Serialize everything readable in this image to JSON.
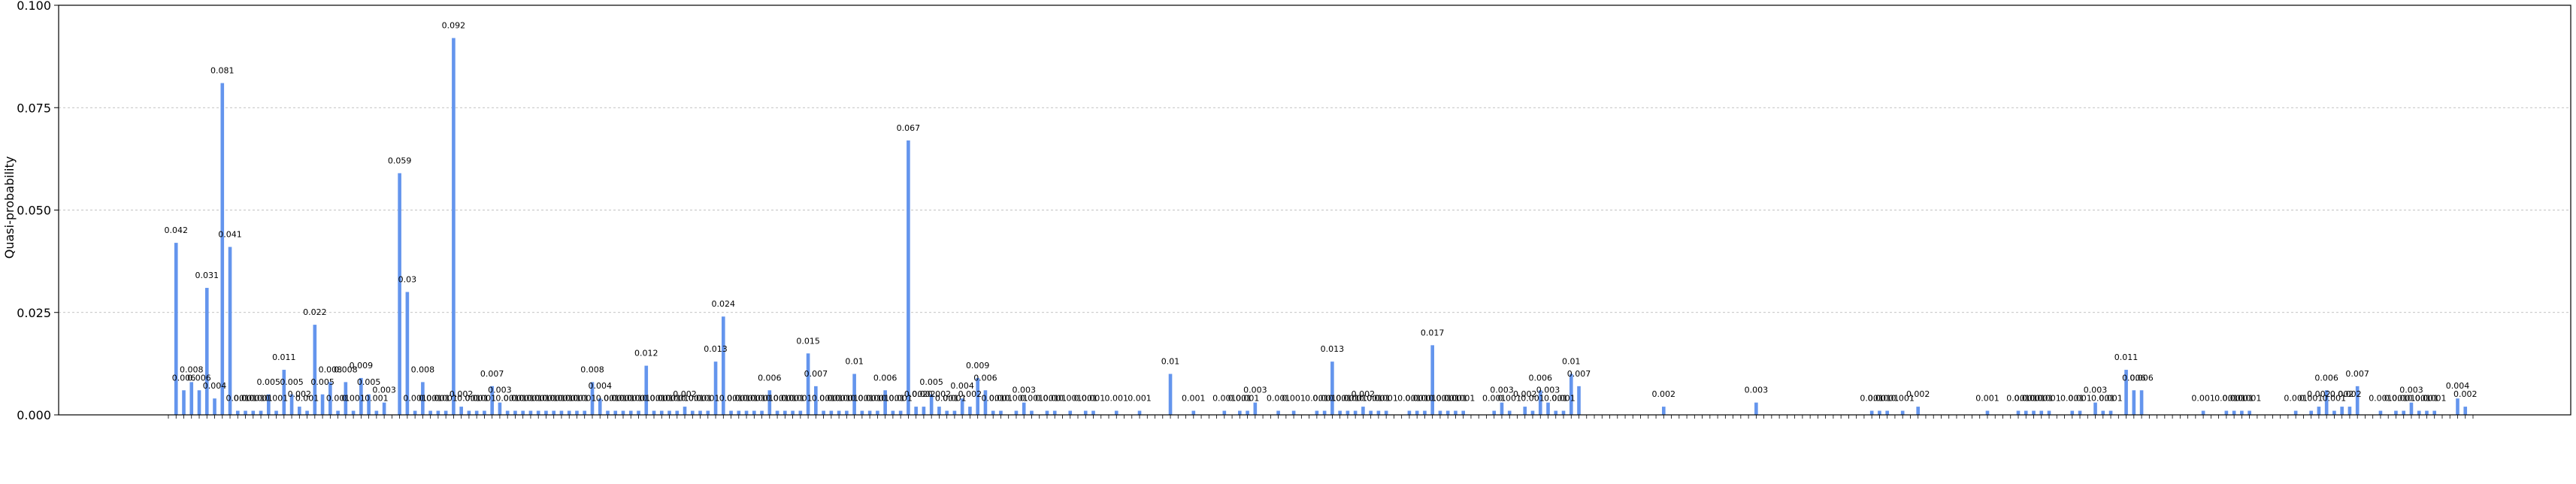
{
  "chart_data": {
    "type": "bar",
    "ylabel": "Quasi-probability",
    "ylim": [
      0,
      0.1
    ],
    "yticks": [
      "0.000",
      "0.025",
      "0.050",
      "0.075",
      "0.100"
    ],
    "ytick_values": [
      0,
      0.025,
      0.05,
      0.075,
      0.1
    ],
    "grid": "horizontal dashed",
    "bar_color": "#6495ED",
    "category_count": 300,
    "bars": [
      {
        "index": 1,
        "value": 0.042,
        "label": "0.042"
      },
      {
        "index": 2,
        "value": 0.006,
        "label": "0.006"
      },
      {
        "index": 3,
        "value": 0.008,
        "label": "0.008"
      },
      {
        "index": 4,
        "value": 0.006,
        "label": "0.006"
      },
      {
        "index": 5,
        "value": 0.031,
        "label": "0.031"
      },
      {
        "index": 6,
        "value": 0.004,
        "label": "0.004"
      },
      {
        "index": 7,
        "value": 0.081,
        "label": "0.081"
      },
      {
        "index": 8,
        "value": 0.041,
        "label": "0.041"
      },
      {
        "index": 9,
        "value": 0.001,
        "label": "0.001"
      },
      {
        "index": 10,
        "value": 0.001,
        "label": "0.001"
      },
      {
        "index": 11,
        "value": 0.001,
        "label": "0.001"
      },
      {
        "index": 12,
        "value": 0.001,
        "label": "0.001"
      },
      {
        "index": 13,
        "value": 0.005,
        "label": "0.005"
      },
      {
        "index": 14,
        "value": 0.001,
        "label": "0.001"
      },
      {
        "index": 15,
        "value": 0.011,
        "label": "0.011"
      },
      {
        "index": 16,
        "value": 0.005,
        "label": "0.005"
      },
      {
        "index": 17,
        "value": 0.002,
        "label": "0.002"
      },
      {
        "index": 18,
        "value": 0.001,
        "label": "0.001"
      },
      {
        "index": 19,
        "value": 0.022,
        "label": "0.022"
      },
      {
        "index": 20,
        "value": 0.005,
        "label": "0.005"
      },
      {
        "index": 21,
        "value": 0.008,
        "label": "0.008"
      },
      {
        "index": 22,
        "value": 0.001,
        "label": "0.001"
      },
      {
        "index": 23,
        "value": 0.008,
        "label": "0.008"
      },
      {
        "index": 24,
        "value": 0.001,
        "label": "0.001"
      },
      {
        "index": 25,
        "value": 0.009,
        "label": "0.009"
      },
      {
        "index": 26,
        "value": 0.005,
        "label": "0.005"
      },
      {
        "index": 27,
        "value": 0.001,
        "label": "0.001"
      },
      {
        "index": 28,
        "value": 0.003,
        "label": "0.003"
      },
      {
        "index": 30,
        "value": 0.059,
        "label": "0.059"
      },
      {
        "index": 31,
        "value": 0.03,
        "label": "0.03"
      },
      {
        "index": 32,
        "value": 0.001,
        "label": "0.001"
      },
      {
        "index": 33,
        "value": 0.008,
        "label": "0.008"
      },
      {
        "index": 34,
        "value": 0.001,
        "label": "0.001"
      },
      {
        "index": 35,
        "value": 0.001,
        "label": "0.001"
      },
      {
        "index": 36,
        "value": 0.001,
        "label": "0.001"
      },
      {
        "index": 37,
        "value": 0.092,
        "label": "0.092"
      },
      {
        "index": 38,
        "value": 0.002,
        "label": "0.002"
      },
      {
        "index": 39,
        "value": 0.001,
        "label": "0.001"
      },
      {
        "index": 40,
        "value": 0.001,
        "label": "0.001"
      },
      {
        "index": 41,
        "value": 0.001,
        "label": "0.001"
      },
      {
        "index": 42,
        "value": 0.007,
        "label": "0.007"
      },
      {
        "index": 43,
        "value": 0.003,
        "label": "0.003"
      },
      {
        "index": 44,
        "value": 0.001,
        "label": "0.001"
      },
      {
        "index": 45,
        "value": 0.001,
        "label": "0.001"
      },
      {
        "index": 46,
        "value": 0.001,
        "label": "0.001"
      },
      {
        "index": 47,
        "value": 0.001,
        "label": "0.001"
      },
      {
        "index": 48,
        "value": 0.001,
        "label": "0.001"
      },
      {
        "index": 49,
        "value": 0.001,
        "label": "0.001"
      },
      {
        "index": 50,
        "value": 0.001,
        "label": "0.001"
      },
      {
        "index": 51,
        "value": 0.001,
        "label": "0.001"
      },
      {
        "index": 52,
        "value": 0.001,
        "label": "0.001"
      },
      {
        "index": 53,
        "value": 0.001,
        "label": "0.001"
      },
      {
        "index": 54,
        "value": 0.001,
        "label": "0.001"
      },
      {
        "index": 55,
        "value": 0.008,
        "label": "0.008"
      },
      {
        "index": 56,
        "value": 0.004,
        "label": "0.004"
      },
      {
        "index": 57,
        "value": 0.001,
        "label": "0.001"
      },
      {
        "index": 58,
        "value": 0.001,
        "label": "0.001"
      },
      {
        "index": 59,
        "value": 0.001,
        "label": "0.001"
      },
      {
        "index": 60,
        "value": 0.001,
        "label": "0.001"
      },
      {
        "index": 61,
        "value": 0.001,
        "label": "0.001"
      },
      {
        "index": 62,
        "value": 0.012,
        "label": "0.012"
      },
      {
        "index": 63,
        "value": 0.001,
        "label": "0.001"
      },
      {
        "index": 64,
        "value": 0.001,
        "label": "0.001"
      },
      {
        "index": 65,
        "value": 0.001,
        "label": "0.001"
      },
      {
        "index": 66,
        "value": 0.001,
        "label": "0.001"
      },
      {
        "index": 67,
        "value": 0.002,
        "label": "0.002"
      },
      {
        "index": 68,
        "value": 0.001,
        "label": "0.001"
      },
      {
        "index": 69,
        "value": 0.001,
        "label": "0.001"
      },
      {
        "index": 70,
        "value": 0.001,
        "label": "0.001"
      },
      {
        "index": 71,
        "value": 0.013,
        "label": "0.013"
      },
      {
        "index": 72,
        "value": 0.024,
        "label": "0.024"
      },
      {
        "index": 73,
        "value": 0.001,
        "label": "0.001"
      },
      {
        "index": 74,
        "value": 0.001,
        "label": "0.001"
      },
      {
        "index": 75,
        "value": 0.001,
        "label": "0.001"
      },
      {
        "index": 76,
        "value": 0.001,
        "label": "0.001"
      },
      {
        "index": 77,
        "value": 0.001,
        "label": "0.001"
      },
      {
        "index": 78,
        "value": 0.006,
        "label": "0.006"
      },
      {
        "index": 79,
        "value": 0.001,
        "label": "0.001"
      },
      {
        "index": 80,
        "value": 0.001,
        "label": "0.001"
      },
      {
        "index": 81,
        "value": 0.001,
        "label": "0.001"
      },
      {
        "index": 82,
        "value": 0.001,
        "label": "0.001"
      },
      {
        "index": 83,
        "value": 0.015,
        "label": "0.015"
      },
      {
        "index": 84,
        "value": 0.007,
        "label": "0.007"
      },
      {
        "index": 85,
        "value": 0.001,
        "label": "0.001"
      },
      {
        "index": 86,
        "value": 0.001,
        "label": "0.001"
      },
      {
        "index": 87,
        "value": 0.001,
        "label": "0.001"
      },
      {
        "index": 88,
        "value": 0.001,
        "label": "0.001"
      },
      {
        "index": 89,
        "value": 0.01,
        "label": "0.01"
      },
      {
        "index": 90,
        "value": 0.001,
        "label": "0.001"
      },
      {
        "index": 91,
        "value": 0.001,
        "label": "0.001"
      },
      {
        "index": 92,
        "value": 0.001,
        "label": "0.001"
      },
      {
        "index": 93,
        "value": 0.006,
        "label": "0.006"
      },
      {
        "index": 94,
        "value": 0.001,
        "label": "0.001"
      },
      {
        "index": 95,
        "value": 0.001,
        "label": "0.001"
      },
      {
        "index": 96,
        "value": 0.067,
        "label": "0.067"
      },
      {
        "index": 97,
        "value": 0.002,
        "label": "0.002"
      },
      {
        "index": 98,
        "value": 0.002,
        "label": "0.002"
      },
      {
        "index": 99,
        "value": 0.005,
        "label": "0.005"
      },
      {
        "index": 100,
        "value": 0.002,
        "label": "0.002"
      },
      {
        "index": 101,
        "value": 0.001,
        "label": "0.001"
      },
      {
        "index": 102,
        "value": 0.001,
        "label": "0.001"
      },
      {
        "index": 103,
        "value": 0.004,
        "label": "0.004"
      },
      {
        "index": 104,
        "value": 0.002,
        "label": "0.002"
      },
      {
        "index": 105,
        "value": 0.009,
        "label": "0.009"
      },
      {
        "index": 106,
        "value": 0.006,
        "label": "0.006"
      },
      {
        "index": 107,
        "value": 0.001,
        "label": "0.001"
      },
      {
        "index": 108,
        "value": 0.001,
        "label": "0.001"
      },
      {
        "index": 110,
        "value": 0.001,
        "label": "0.001"
      },
      {
        "index": 111,
        "value": 0.003,
        "label": "0.003"
      },
      {
        "index": 112,
        "value": 0.001,
        "label": "0.001"
      },
      {
        "index": 114,
        "value": 0.001,
        "label": "0.001"
      },
      {
        "index": 115,
        "value": 0.001,
        "label": "0.001"
      },
      {
        "index": 117,
        "value": 0.001,
        "label": "0.001"
      },
      {
        "index": 119,
        "value": 0.001,
        "label": "0.001"
      },
      {
        "index": 120,
        "value": 0.001,
        "label": "0.001"
      },
      {
        "index": 123,
        "value": 0.001,
        "label": "0.001"
      },
      {
        "index": 126,
        "value": 0.001,
        "label": "0.001"
      },
      {
        "index": 130,
        "value": 0.01,
        "label": "0.01"
      },
      {
        "index": 133,
        "value": 0.001,
        "label": "0.001"
      },
      {
        "index": 137,
        "value": 0.001,
        "label": "0.001"
      },
      {
        "index": 139,
        "value": 0.001,
        "label": "0.001"
      },
      {
        "index": 140,
        "value": 0.001,
        "label": "0.001"
      },
      {
        "index": 141,
        "value": 0.003,
        "label": "0.003"
      },
      {
        "index": 144,
        "value": 0.001,
        "label": "0.001"
      },
      {
        "index": 146,
        "value": 0.001,
        "label": "0.001"
      },
      {
        "index": 149,
        "value": 0.001,
        "label": "0.001"
      },
      {
        "index": 150,
        "value": 0.001,
        "label": "0.001"
      },
      {
        "index": 151,
        "value": 0.013,
        "label": "0.013"
      },
      {
        "index": 152,
        "value": 0.001,
        "label": "0.001"
      },
      {
        "index": 153,
        "value": 0.001,
        "label": "0.001"
      },
      {
        "index": 154,
        "value": 0.001,
        "label": "0.001"
      },
      {
        "index": 155,
        "value": 0.002,
        "label": "0.002"
      },
      {
        "index": 156,
        "value": 0.001,
        "label": "0.001"
      },
      {
        "index": 157,
        "value": 0.001,
        "label": "0.001"
      },
      {
        "index": 158,
        "value": 0.001,
        "label": "0.001"
      },
      {
        "index": 161,
        "value": 0.001,
        "label": "0.001"
      },
      {
        "index": 162,
        "value": 0.001,
        "label": "0.001"
      },
      {
        "index": 163,
        "value": 0.001,
        "label": "0.001"
      },
      {
        "index": 164,
        "value": 0.017,
        "label": "0.017"
      },
      {
        "index": 165,
        "value": 0.001,
        "label": "0.001"
      },
      {
        "index": 166,
        "value": 0.001,
        "label": "0.001"
      },
      {
        "index": 167,
        "value": 0.001,
        "label": "0.001"
      },
      {
        "index": 168,
        "value": 0.001,
        "label": "0.001"
      },
      {
        "index": 172,
        "value": 0.001,
        "label": "0.001"
      },
      {
        "index": 173,
        "value": 0.003,
        "label": "0.003"
      },
      {
        "index": 174,
        "value": 0.001,
        "label": "0.001"
      },
      {
        "index": 176,
        "value": 0.002,
        "label": "0.002"
      },
      {
        "index": 177,
        "value": 0.001,
        "label": "0.001"
      },
      {
        "index": 178,
        "value": 0.006,
        "label": "0.006"
      },
      {
        "index": 179,
        "value": 0.003,
        "label": "0.003"
      },
      {
        "index": 180,
        "value": 0.001,
        "label": "0.001"
      },
      {
        "index": 181,
        "value": 0.001,
        "label": "0.001"
      },
      {
        "index": 182,
        "value": 0.01,
        "label": "0.01"
      },
      {
        "index": 183,
        "value": 0.007,
        "label": "0.007"
      },
      {
        "index": 194,
        "value": 0.002,
        "label": "0.002"
      },
      {
        "index": 206,
        "value": 0.003,
        "label": "0.003"
      },
      {
        "index": 221,
        "value": 0.001,
        "label": "0.001"
      },
      {
        "index": 222,
        "value": 0.001,
        "label": "0.001"
      },
      {
        "index": 223,
        "value": 0.001,
        "label": "0.001"
      },
      {
        "index": 225,
        "value": 0.001,
        "label": "0.001"
      },
      {
        "index": 227,
        "value": 0.002,
        "label": "0.002"
      },
      {
        "index": 236,
        "value": 0.001,
        "label": "0.001"
      },
      {
        "index": 240,
        "value": 0.001,
        "label": "0.001"
      },
      {
        "index": 241,
        "value": 0.001,
        "label": "0.001"
      },
      {
        "index": 242,
        "value": 0.001,
        "label": "0.001"
      },
      {
        "index": 243,
        "value": 0.001,
        "label": "0.001"
      },
      {
        "index": 244,
        "value": 0.001,
        "label": "0.001"
      },
      {
        "index": 247,
        "value": 0.001,
        "label": "0.001"
      },
      {
        "index": 248,
        "value": 0.001,
        "label": "0.001"
      },
      {
        "index": 250,
        "value": 0.003,
        "label": "0.003"
      },
      {
        "index": 251,
        "value": 0.001,
        "label": "0.001"
      },
      {
        "index": 252,
        "value": 0.001,
        "label": "0.001"
      },
      {
        "index": 254,
        "value": 0.011,
        "label": "0.011"
      },
      {
        "index": 255,
        "value": 0.006,
        "label": "0.006"
      },
      {
        "index": 256,
        "value": 0.006,
        "label": "0.006"
      },
      {
        "index": 264,
        "value": 0.001,
        "label": "0.001"
      },
      {
        "index": 267,
        "value": 0.001,
        "label": "0.001"
      },
      {
        "index": 268,
        "value": 0.001,
        "label": "0.001"
      },
      {
        "index": 269,
        "value": 0.001,
        "label": "0.001"
      },
      {
        "index": 270,
        "value": 0.001,
        "label": "0.001"
      },
      {
        "index": 276,
        "value": 0.001,
        "label": "0.001"
      },
      {
        "index": 278,
        "value": 0.001,
        "label": "0.001"
      },
      {
        "index": 279,
        "value": 0.002,
        "label": "0.002"
      },
      {
        "index": 280,
        "value": 0.006,
        "label": "0.006"
      },
      {
        "index": 281,
        "value": 0.001,
        "label": "0.001"
      },
      {
        "index": 282,
        "value": 0.002,
        "label": "0.002"
      },
      {
        "index": 283,
        "value": 0.002,
        "label": "0.002"
      },
      {
        "index": 284,
        "value": 0.007,
        "label": "0.007"
      },
      {
        "index": 287,
        "value": 0.001,
        "label": "0.001"
      },
      {
        "index": 289,
        "value": 0.001,
        "label": "0.001"
      },
      {
        "index": 290,
        "value": 0.001,
        "label": "0.001"
      },
      {
        "index": 291,
        "value": 0.003,
        "label": "0.003"
      },
      {
        "index": 292,
        "value": 0.001,
        "label": "0.001"
      },
      {
        "index": 293,
        "value": 0.001,
        "label": "0.001"
      },
      {
        "index": 294,
        "value": 0.001,
        "label": "0.001"
      },
      {
        "index": 297,
        "value": 0.004,
        "label": "0.004"
      },
      {
        "index": 298,
        "value": 0.002,
        "label": "0.002"
      }
    ]
  }
}
